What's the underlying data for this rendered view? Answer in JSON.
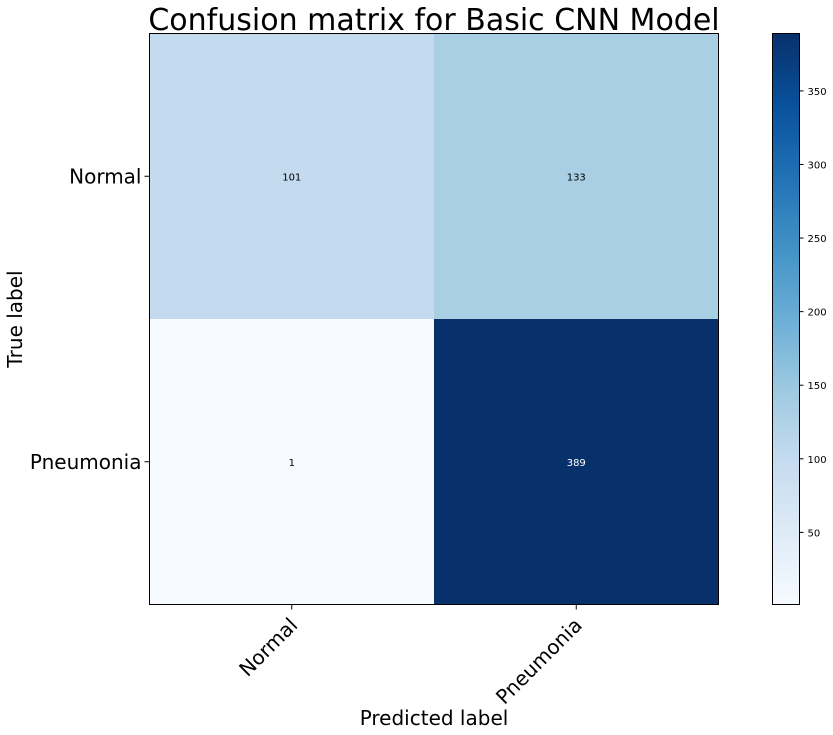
{
  "chart_data": {
    "type": "heatmap",
    "title": "Confusion matrix for Basic CNN Model",
    "xlabel": "Predicted label",
    "ylabel": "True label",
    "x_categories": [
      "Normal",
      "Pneumonia"
    ],
    "y_categories": [
      "Normal",
      "Pneumonia"
    ],
    "values": [
      [
        101,
        133
      ],
      [
        1,
        389
      ]
    ],
    "colormap": "Blues",
    "colorbar": {
      "range": [
        1,
        389
      ],
      "ticks": [
        50,
        100,
        150,
        200,
        250,
        300,
        350
      ]
    },
    "grid": false
  }
}
